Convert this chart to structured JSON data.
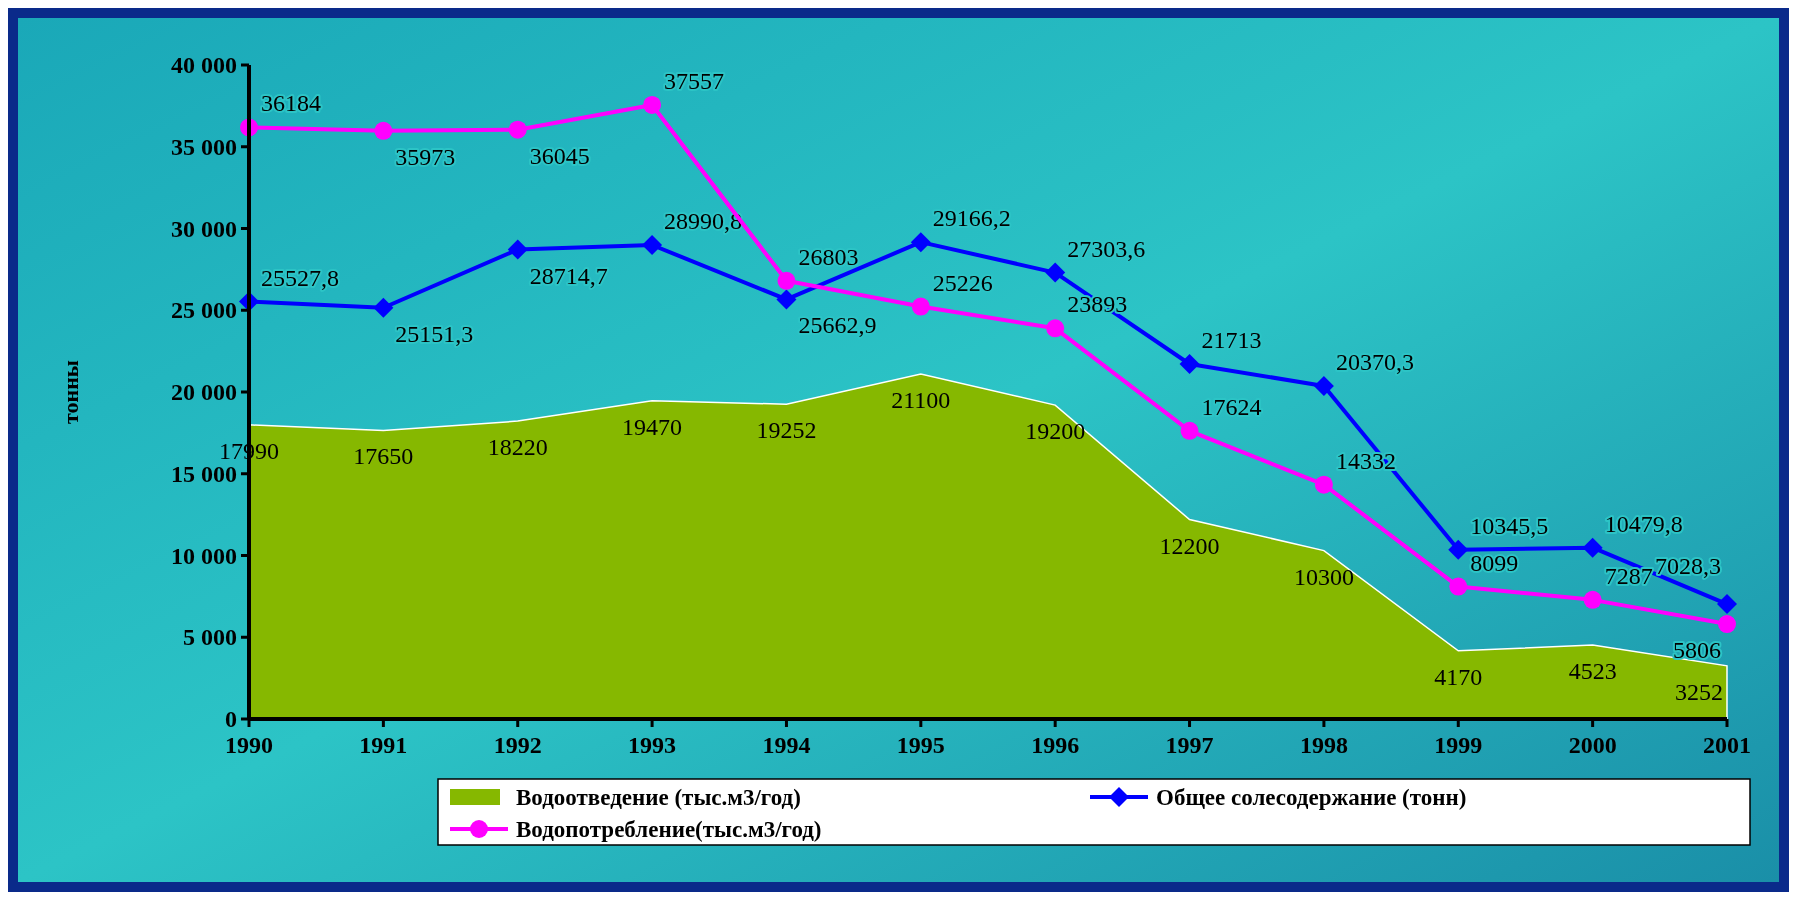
{
  "chart_data": {
    "type": "line",
    "ylabel": "тонны",
    "categories": [
      "1990",
      "1991",
      "1992",
      "1993",
      "1994",
      "1995",
      "1996",
      "1997",
      "1998",
      "1999",
      "2000",
      "2001"
    ],
    "ylim": [
      0,
      40000
    ],
    "yticks": [
      {
        "value": 0,
        "label": "0"
      },
      {
        "value": 5000,
        "label": "5 000"
      },
      {
        "value": 10000,
        "label": "10 000"
      },
      {
        "value": 15000,
        "label": "15 000"
      },
      {
        "value": 20000,
        "label": "20 000"
      },
      {
        "value": 25000,
        "label": "25 000"
      },
      {
        "value": 30000,
        "label": "30 000"
      },
      {
        "value": 35000,
        "label": "35 000"
      },
      {
        "value": 40000,
        "label": "40 000"
      }
    ],
    "legend": "bottom",
    "grid": false,
    "series": [
      {
        "name": "Водоотведение (тыс.м3/год)",
        "type": "area",
        "color": "#86b800",
        "values": [
          17990,
          17650,
          18220,
          19470,
          19252,
          21100,
          19200,
          12200,
          10300,
          4170,
          4523,
          3252
        ],
        "value_labels": [
          "17990",
          "17650",
          "18220",
          "19470",
          "19252",
          "21100",
          "19200",
          "12200",
          "10300",
          "4170",
          "4523",
          "3252"
        ]
      },
      {
        "name": "Общее солесодержание (тонн)",
        "type": "line",
        "marker": "diamond",
        "color": "#0000ff",
        "values": [
          25527.8,
          25151.3,
          28714.7,
          28990.8,
          25662.9,
          29166.2,
          27303.6,
          21713,
          20370.3,
          10345.5,
          10479.8,
          7028.3
        ],
        "value_labels": [
          "25527,8",
          "25151,3",
          "28714,7",
          "28990,8",
          "25662,9",
          "29166,2",
          "27303,6",
          "21713",
          "20370,3",
          "10345,5",
          "10479,8",
          "7028,3"
        ]
      },
      {
        "name": "Водопотребление(тыс.м3/год)",
        "type": "line",
        "marker": "circle",
        "color": "#ff00ff",
        "values": [
          36184,
          35973,
          36045,
          37557,
          26803,
          25226,
          23893,
          17624,
          14332,
          8099,
          7287,
          5806
        ],
        "value_labels": [
          "36184",
          "35973",
          "36045",
          "37557",
          "26803",
          "25226",
          "23893",
          "17624",
          "14332",
          "8099",
          "7287",
          "5806"
        ]
      }
    ]
  }
}
